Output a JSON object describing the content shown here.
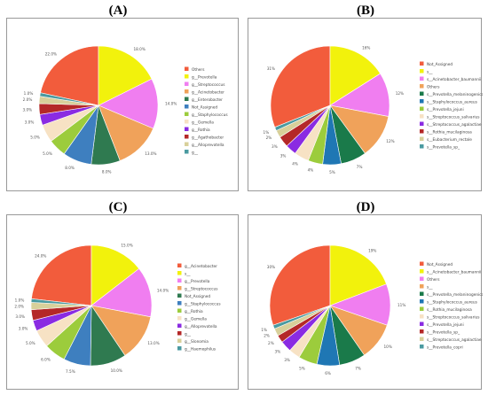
{
  "panels": [
    {
      "letter": "(A)",
      "chart_data": {
        "type": "pie",
        "slices": [
          {
            "label": "Others",
            "value": 22.0,
            "value_label": "22.0%",
            "color": "#f25c3c"
          },
          {
            "label": "g__Prevotella",
            "value": 18.0,
            "value_label": "18.0%",
            "color": "#f2f20c"
          },
          {
            "label": "g__Streptococcus",
            "value": 14.0,
            "value_label": "14.0%",
            "color": "#f07ef0"
          },
          {
            "label": "g__Acinetobacter",
            "value": 13.0,
            "value_label": "13.0%",
            "color": "#f0a25a"
          },
          {
            "label": "g__Enterobacter",
            "value": 8.0,
            "value_label": "8.0%",
            "color": "#2f7a50"
          },
          {
            "label": "Not_Assigned",
            "value": 8.0,
            "value_label": "8.0%",
            "color": "#3e7fbf"
          },
          {
            "label": "g__Staphylococcus",
            "value": 5.0,
            "value_label": "5.0%",
            "color": "#9ccc3c"
          },
          {
            "label": "g__Gemella",
            "value": 5.0,
            "value_label": "5.0%",
            "color": "#f7e2c4"
          },
          {
            "label": "g__Rothia",
            "value": 3.0,
            "value_label": "3.0%",
            "color": "#8a2be2"
          },
          {
            "label": "g__Agathobacter",
            "value": 3.0,
            "value_label": "3.0%",
            "color": "#b42828"
          },
          {
            "label": "g__Alloprevotella",
            "value": 2.0,
            "value_label": "2.0%",
            "color": "#d8d09a"
          },
          {
            "label": "g__",
            "value": 1.0,
            "value_label": "1.0%",
            "color": "#4a9aa0"
          }
        ]
      }
    },
    {
      "letter": "(B)",
      "chart_data": {
        "type": "pie",
        "slices": [
          {
            "label": "Not_Assigned",
            "value": 31,
            "value_label": "31%",
            "color": "#f25c3c"
          },
          {
            "label": "s__",
            "value": 16,
            "value_label": "16%",
            "color": "#f2f20c"
          },
          {
            "label": "s__Acinetobacter_baumannii",
            "value": 12,
            "value_label": "12%",
            "color": "#f07ef0"
          },
          {
            "label": "Others",
            "value": 12,
            "value_label": "12%",
            "color": "#f0a25a"
          },
          {
            "label": "s__Prevotella_melaninogenica",
            "value": 7,
            "value_label": "7%",
            "color": "#1a7a4a"
          },
          {
            "label": "s__Staphylococcus_aureus",
            "value": 5,
            "value_label": "5%",
            "color": "#1f77b4"
          },
          {
            "label": "s__Prevotella_jejuni",
            "value": 4,
            "value_label": "4%",
            "color": "#9ccc3c"
          },
          {
            "label": "s__Streptococcus_salivarius",
            "value": 4,
            "value_label": "4%",
            "color": "#f7e2c4"
          },
          {
            "label": "s__Streptococcus_agalactiae",
            "value": 3,
            "value_label": "3%",
            "color": "#8a2be2"
          },
          {
            "label": "s__Rothia_mucilaginosa",
            "value": 3,
            "value_label": "3%",
            "color": "#b42828"
          },
          {
            "label": "s__Eubacterium_rectale",
            "value": 2,
            "value_label": "2%",
            "color": "#d8d09a"
          },
          {
            "label": "s__Prevotella_sp_",
            "value": 1,
            "value_label": "1%",
            "color": "#4a9aa0"
          }
        ]
      }
    },
    {
      "letter": "(C)",
      "chart_data": {
        "type": "pie",
        "slices": [
          {
            "label": "g__Acinetobacter",
            "value": 24.0,
            "value_label": "24.0%",
            "color": "#f25c3c"
          },
          {
            "label": "s__",
            "value": 15.0,
            "value_label": "15.0%",
            "color": "#f2f20c"
          },
          {
            "label": "g__Prevotella",
            "value": 14.0,
            "value_label": "14.0%",
            "color": "#f07ef0"
          },
          {
            "label": "g__Streptococcus",
            "value": 13.0,
            "value_label": "13.0%",
            "color": "#f0a25a"
          },
          {
            "label": "Not_Assigned",
            "value": 10.0,
            "value_label": "10.0%",
            "color": "#2f7a50"
          },
          {
            "label": "g__Staphylococcus",
            "value": 7.5,
            "value_label": "7.5%",
            "color": "#3e7fbf"
          },
          {
            "label": "g__Rothia",
            "value": 6.0,
            "value_label": "6.0%",
            "color": "#9ccc3c"
          },
          {
            "label": "g__Gemella",
            "value": 5.0,
            "value_label": "5.0%",
            "color": "#f7e2c4"
          },
          {
            "label": "g__Alloprevotella",
            "value": 3.0,
            "value_label": "3.0%",
            "color": "#8a2be2"
          },
          {
            "label": "g__",
            "value": 3.0,
            "value_label": "3.0%",
            "color": "#b42828"
          },
          {
            "label": "g__Slonomia",
            "value": 2.0,
            "value_label": "2.0%",
            "color": "#d8d09a"
          },
          {
            "label": "g__Haemophilus",
            "value": 1.0,
            "value_label": "1.0%",
            "color": "#4a9aa0"
          }
        ]
      }
    },
    {
      "letter": "(D)",
      "chart_data": {
        "type": "pie",
        "slices": [
          {
            "label": "Not_Assigned",
            "value": 30,
            "value_label": "30%",
            "color": "#f25c3c"
          },
          {
            "label": "s__Acinetobacter_baumannii",
            "value": 19,
            "value_label": "19%",
            "color": "#f2f20c"
          },
          {
            "label": "Others",
            "value": 11,
            "value_label": "11%",
            "color": "#f07ef0"
          },
          {
            "label": "s__",
            "value": 10,
            "value_label": "10%",
            "color": "#f0a25a"
          },
          {
            "label": "s__Prevotella_melaninogenica",
            "value": 7,
            "value_label": "7%",
            "color": "#1a7a4a"
          },
          {
            "label": "s__Staphylococcus_aureus",
            "value": 6,
            "value_label": "6%",
            "color": "#1f77b4"
          },
          {
            "label": "s__Rothia_mucilaginosa",
            "value": 5,
            "value_label": "5%",
            "color": "#9ccc3c"
          },
          {
            "label": "s__Streptococcus_salivarius",
            "value": 3,
            "value_label": "3%",
            "color": "#f7e2c4"
          },
          {
            "label": "s__Prevotella_jejuni",
            "value": 3,
            "value_label": "3%",
            "color": "#8a2be2"
          },
          {
            "label": "s__Prevotella_sp_",
            "value": 2,
            "value_label": "2%",
            "color": "#b42828"
          },
          {
            "label": "s__Streptococcus_agalactiae",
            "value": 2,
            "value_label": "2%",
            "color": "#d8d09a"
          },
          {
            "label": "s__Prevotella_copri",
            "value": 1,
            "value_label": "1%",
            "color": "#4a9aa0"
          }
        ]
      }
    }
  ]
}
